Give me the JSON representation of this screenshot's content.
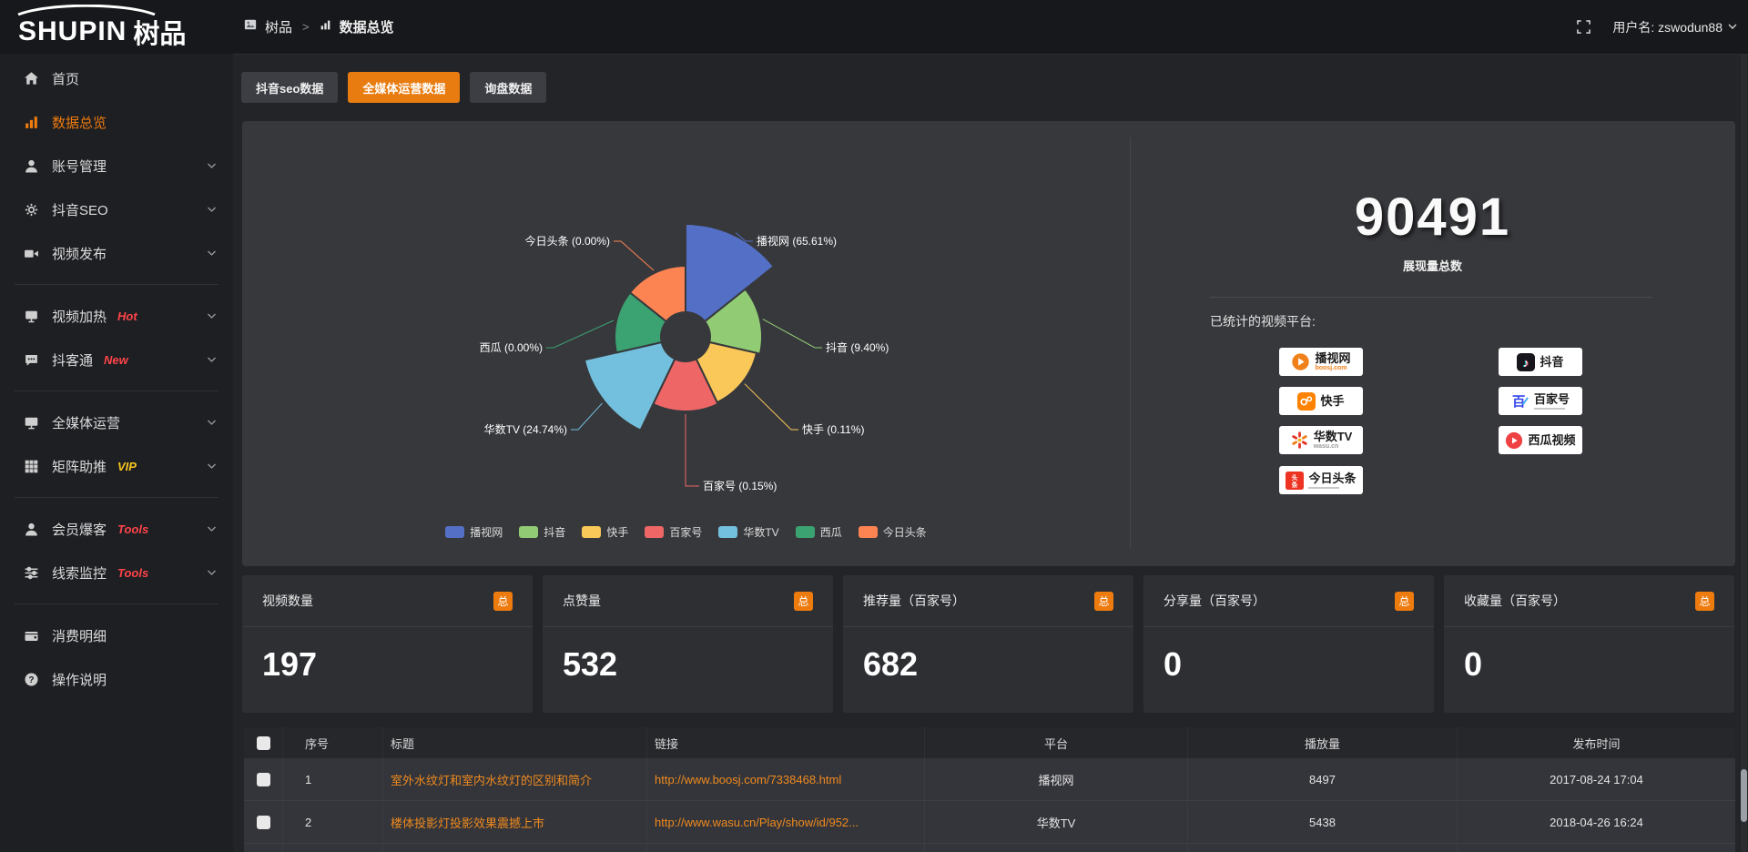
{
  "header": {
    "logo_en": "SHUPIN",
    "logo_cn": "树品",
    "breadcrumb": {
      "item1": "树品",
      "separator": ">",
      "item2": "数据总览"
    },
    "user_label": "用户名: zswodun88"
  },
  "sidebar": {
    "items": [
      {
        "id": "home",
        "icon": "home",
        "label": "首页"
      },
      {
        "id": "data-overview",
        "icon": "bars",
        "label": "数据总览",
        "active": true
      },
      {
        "id": "account-manage",
        "icon": "user",
        "label": "账号管理",
        "chevron": true
      },
      {
        "id": "douyin-seo",
        "icon": "gear",
        "label": "抖音SEO",
        "chevron": true
      },
      {
        "id": "video-publish",
        "icon": "camera",
        "label": "视频发布",
        "chevron": true,
        "divider_after": true
      },
      {
        "id": "video-heat",
        "icon": "tv",
        "label": "视频加热",
        "badge": "Hot",
        "badge_color": "#ff4449",
        "chevron": true
      },
      {
        "id": "douketong",
        "icon": "chat",
        "label": "抖客通",
        "badge": "New",
        "badge_color": "#ff4449",
        "chevron": true,
        "divider_after": true
      },
      {
        "id": "media-ops",
        "icon": "monitor",
        "label": "全媒体运营",
        "chevron": true
      },
      {
        "id": "matrix-boost",
        "icon": "grid",
        "label": "矩阵助推",
        "badge": "VIP",
        "badge_color": "#f6c51e",
        "chevron": true,
        "divider_after": true
      },
      {
        "id": "member-baoke",
        "icon": "user",
        "label": "会员爆客",
        "badge": "Tools",
        "badge_color": "#ff4449",
        "chevron": true
      },
      {
        "id": "clue-monitor",
        "icon": "sliders",
        "label": "线索监控",
        "badge": "Tools",
        "badge_color": "#ff4449",
        "chevron": true,
        "divider_after": true
      },
      {
        "id": "consume-detail",
        "icon": "wallet",
        "label": "消费明细"
      },
      {
        "id": "help",
        "icon": "question",
        "label": "操作说明"
      }
    ]
  },
  "tabs": [
    {
      "label": "抖音seo数据",
      "active": false
    },
    {
      "label": "全媒体运营数据",
      "active": true
    },
    {
      "label": "询盘数据",
      "active": false
    }
  ],
  "chart_data": {
    "type": "pie",
    "subtype": "nightingale-rose",
    "legend_position": "bottom",
    "colors": [
      "#5470c6",
      "#91cc75",
      "#fac858",
      "#ee6666",
      "#73c0de",
      "#3ba272",
      "#fc8452"
    ],
    "data": [
      {
        "name": "播视网",
        "percent": "65.61"
      },
      {
        "name": "抖音",
        "percent": "9.40"
      },
      {
        "name": "快手",
        "percent": "0.11"
      },
      {
        "name": "百家号",
        "percent": "0.15"
      },
      {
        "name": "华数TV",
        "percent": "24.74"
      },
      {
        "name": "西瓜",
        "percent": "0.00"
      },
      {
        "name": "今日头条",
        "percent": "0.00"
      }
    ]
  },
  "summary": {
    "total_value": "90491",
    "total_label": "展现量总数",
    "platforms_label": "已统计的视频平台:",
    "platforms": [
      {
        "name": "播视网",
        "sub": "boosj.com",
        "logo": "boosj"
      },
      {
        "name": "抖音",
        "logo": "douyin"
      },
      {
        "name": "快手",
        "logo": "kuaishou"
      },
      {
        "name": "百家号",
        "logo": "baijiahao",
        "subbar": true
      },
      {
        "name": "华数TV",
        "sub": "wasu.cn",
        "logo": "wasu"
      },
      {
        "name": "西瓜视频",
        "logo": "xigua"
      },
      {
        "name": "今日头条",
        "logo": "toutiao",
        "subbar": true
      }
    ]
  },
  "stat_cards": [
    {
      "title": "视频数量",
      "badge": "总",
      "value": "197"
    },
    {
      "title": "点赞量",
      "badge": "总",
      "value": "532"
    },
    {
      "title": "推荐量（百家号）",
      "badge": "总",
      "value": "682"
    },
    {
      "title": "分享量（百家号）",
      "badge": "总",
      "value": "0"
    },
    {
      "title": "收藏量（百家号）",
      "badge": "总",
      "value": "0"
    }
  ],
  "table": {
    "columns": [
      "序号",
      "标题",
      "链接",
      "平台",
      "播放量",
      "发布时间"
    ],
    "rows": [
      {
        "seq": "1",
        "title": "室外水纹灯和室内水纹灯的区别和简介",
        "link": "http://www.boosj.com/7338468.html",
        "platform": "播视网",
        "plays": "8497",
        "time": "2017-08-24 17:04"
      },
      {
        "seq": "2",
        "title": "楼体投影灯投影效果震撼上市",
        "link": "http://www.wasu.cn/Play/show/id/952...",
        "platform": "华数TV",
        "plays": "5438",
        "time": "2018-04-26 16:24"
      },
      {
        "seq": "",
        "title": "",
        "link": "",
        "platform": "",
        "plays": "",
        "time": ""
      }
    ]
  },
  "colors": {
    "accent": "#ee7b0e",
    "panel_bg": "#37383c"
  }
}
